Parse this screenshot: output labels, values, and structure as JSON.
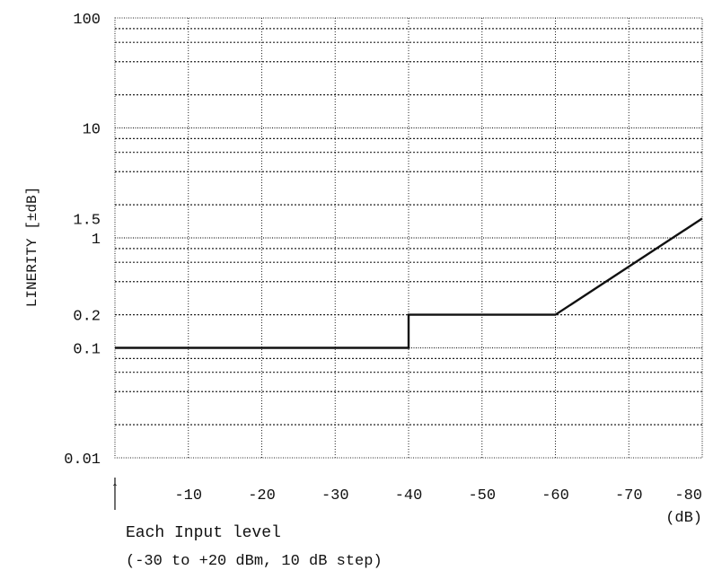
{
  "chart_data": {
    "type": "line",
    "title": "",
    "ylabel": "LINERITY [±dB]",
    "xunit_label": "(dB)",
    "y_scale": "log",
    "ylim": [
      0.01,
      100
    ],
    "xlim": [
      0,
      -80
    ],
    "grid": true,
    "x_ticks": [
      {
        "value": -10,
        "label": "-10"
      },
      {
        "value": -20,
        "label": "-20"
      },
      {
        "value": -30,
        "label": "-30"
      },
      {
        "value": -40,
        "label": "-40"
      },
      {
        "value": -50,
        "label": "-50"
      },
      {
        "value": -60,
        "label": "-60"
      },
      {
        "value": -70,
        "label": "-70"
      },
      {
        "value": -80,
        "label": "-80"
      }
    ],
    "y_ticks": [
      {
        "value": 100,
        "label": "100"
      },
      {
        "value": 10,
        "label": "10"
      },
      {
        "value": 1.5,
        "label": "1.5"
      },
      {
        "value": 1,
        "label": "1"
      },
      {
        "value": 0.2,
        "label": "0.2"
      },
      {
        "value": 0.1,
        "label": "0.1"
      },
      {
        "value": 0.01,
        "label": "0.01"
      }
    ],
    "series": [
      {
        "points": [
          {
            "x": 0,
            "y": 0.1
          },
          {
            "x": -40,
            "y": 0.1
          },
          {
            "x": -40,
            "y": 0.2
          },
          {
            "x": -60,
            "y": 0.2
          },
          {
            "x": -80,
            "y": 1.5
          }
        ]
      }
    ],
    "annotation": {
      "arrow_symbol": "↑",
      "line1": "Each Input level",
      "line2": "(-30 to +20 dBm, 10 dB step)"
    }
  }
}
